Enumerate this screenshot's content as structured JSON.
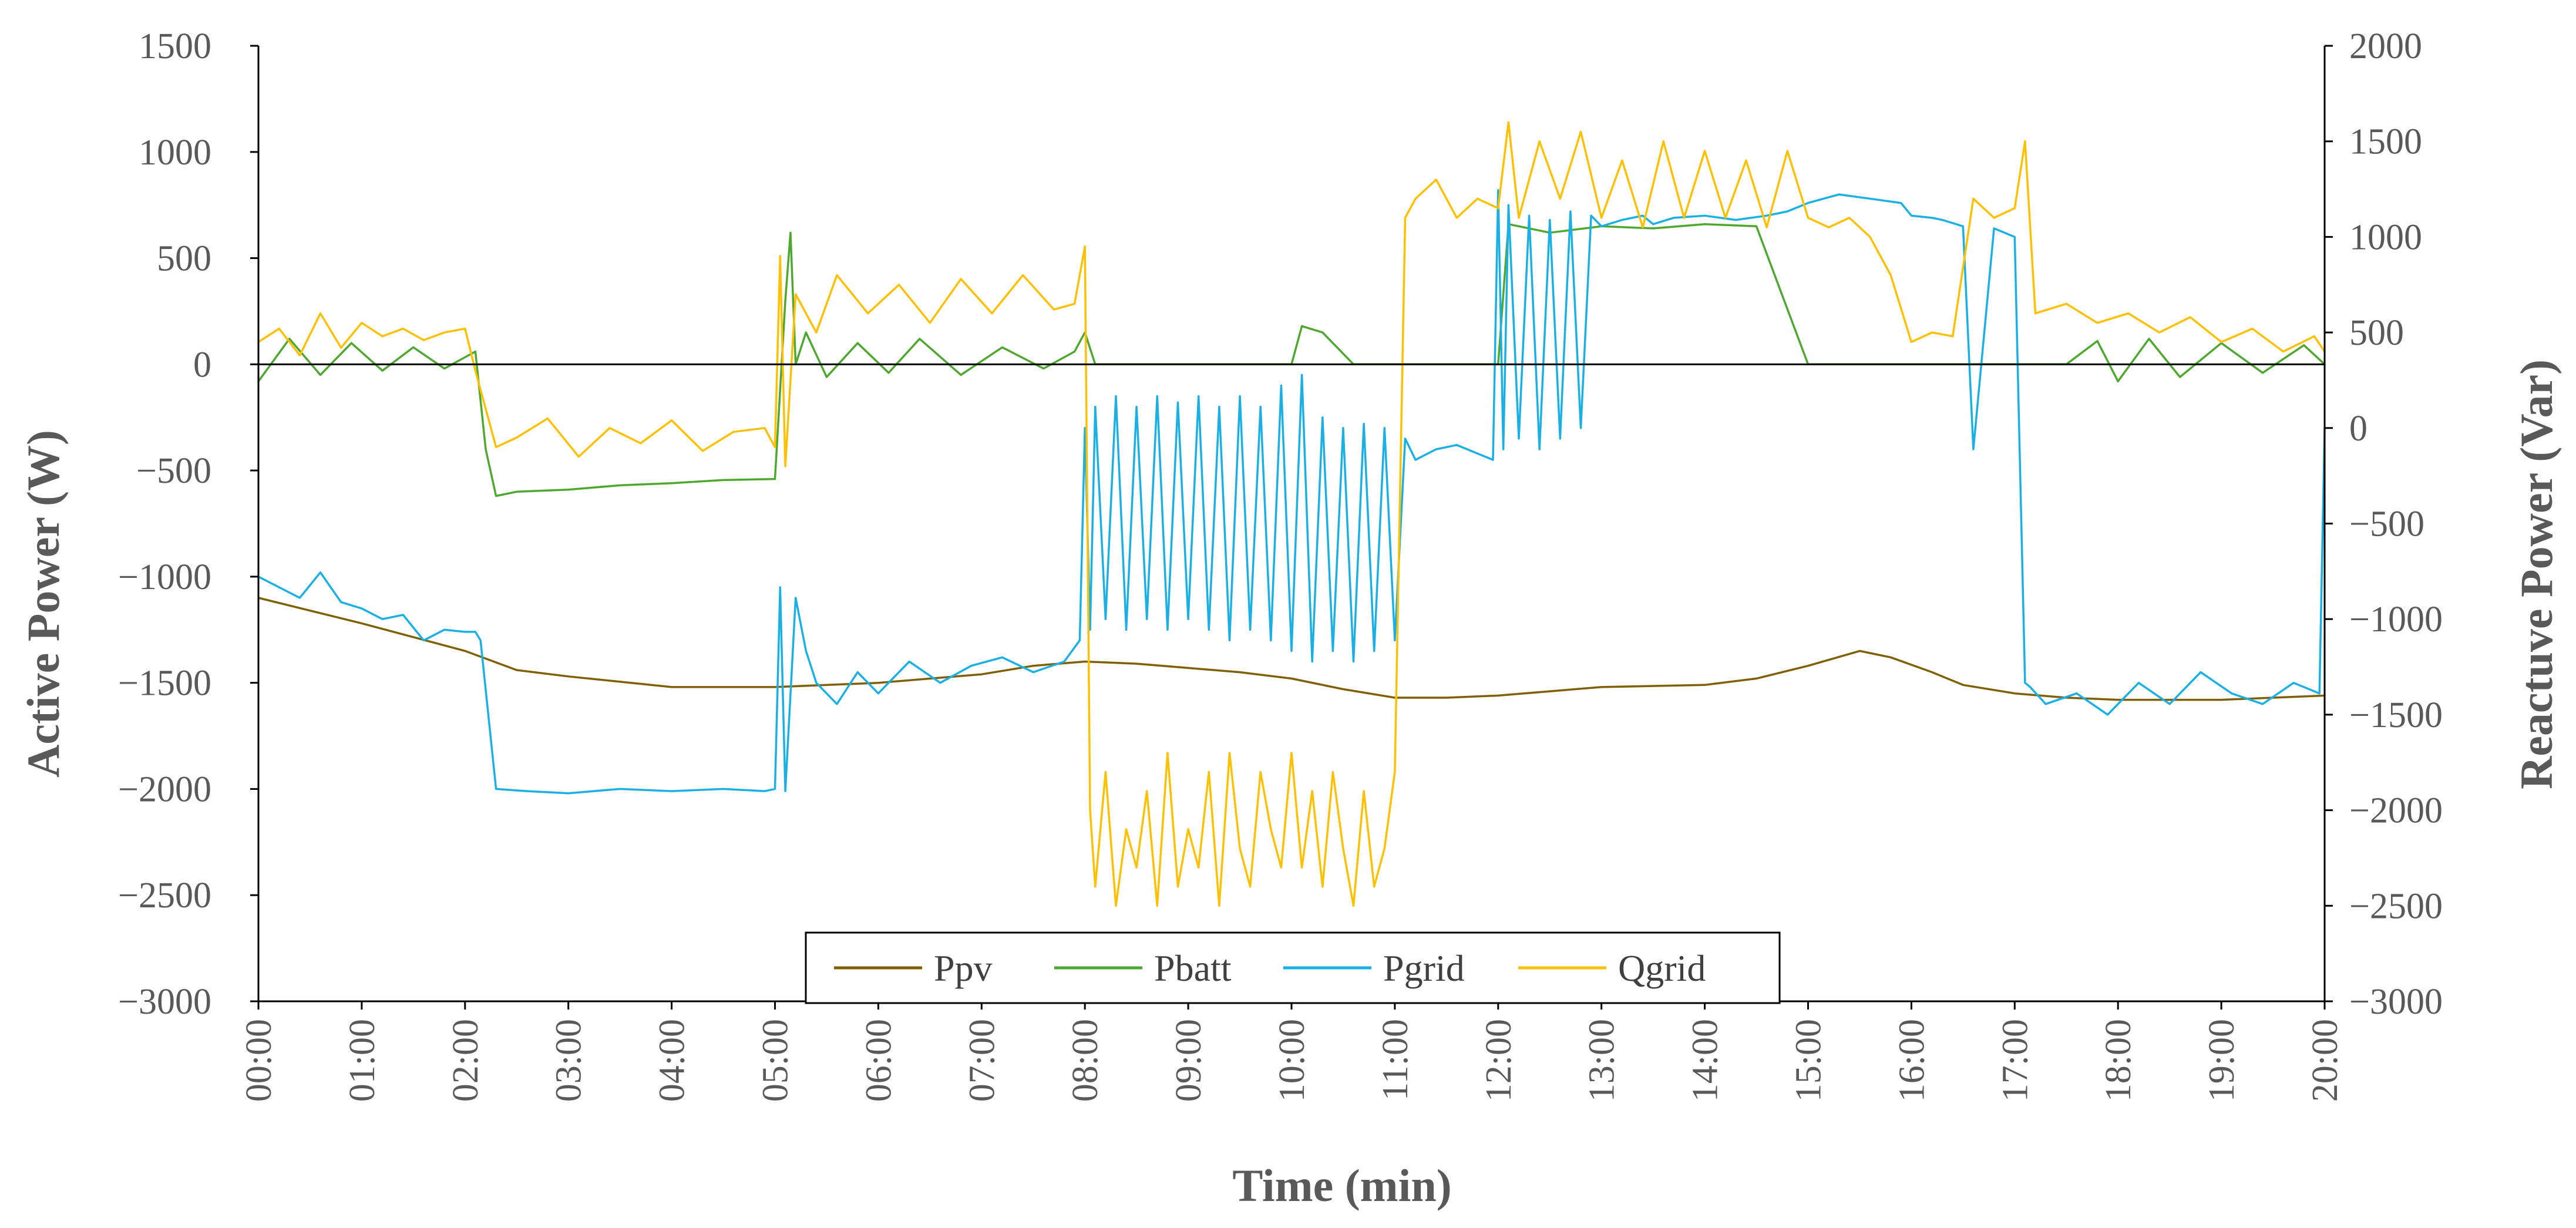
{
  "chart_data": {
    "type": "line",
    "title": "",
    "xlabel": "Time (min)",
    "ylabel_left": "Active Power (W)",
    "ylabel_right": "Reactuve Power (Var)",
    "x_range": [
      0,
      20
    ],
    "ylim_left": [
      -3000,
      1500
    ],
    "ylim_right": [
      -3000,
      2000
    ],
    "yticks_left": [
      -3000,
      -2500,
      -2000,
      -1500,
      -1000,
      -500,
      0,
      500,
      1000,
      1500
    ],
    "yticks_right": [
      -3000,
      -2500,
      -2000,
      -1500,
      -1000,
      -500,
      0,
      500,
      1000,
      1500,
      2000
    ],
    "ytick_labels_left": [
      "−3000",
      "−2500",
      "−2000",
      "−1500",
      "−1000",
      "−500",
      "0",
      "500",
      "1000",
      "1500"
    ],
    "ytick_labels_right": [
      "−3000",
      "−2500",
      "−2000",
      "−1500",
      "−1000",
      "−500",
      "0",
      "500",
      "1000",
      "1500",
      "2000"
    ],
    "xtick_labels": [
      "00:00",
      "01:00",
      "02:00",
      "03:00",
      "04:00",
      "05:00",
      "06:00",
      "07:00",
      "08:00",
      "09:00",
      "10:00",
      "11:00",
      "12:00",
      "13:00",
      "14:00",
      "15:00",
      "16:00",
      "17:00",
      "18:00",
      "19:00",
      "20:00"
    ],
    "legend_position": "bottom-center",
    "series": [
      {
        "name": "Ppv",
        "color": "#7f5f00",
        "axis": "left",
        "x": [
          0,
          1,
          2,
          2.5,
          3,
          4,
          5,
          6,
          7,
          7.5,
          8,
          8.5,
          9,
          9.5,
          10,
          10.5,
          11,
          11.5,
          12,
          12.5,
          13,
          14,
          14.5,
          15,
          15.5,
          15.8,
          16.2,
          16.5,
          17,
          17.5,
          18,
          18.5,
          19,
          19.5,
          20
        ],
        "y": [
          -1100,
          -1220,
          -1350,
          -1440,
          -1470,
          -1520,
          -1520,
          -1500,
          -1460,
          -1420,
          -1400,
          -1410,
          -1430,
          -1450,
          -1480,
          -1530,
          -1570,
          -1570,
          -1560,
          -1540,
          -1520,
          -1510,
          -1480,
          -1420,
          -1350,
          -1380,
          -1450,
          -1510,
          -1550,
          -1570,
          -1580,
          -1580,
          -1580,
          -1570,
          -1560
        ]
      },
      {
        "name": "Pbatt",
        "color": "#4ea72e",
        "axis": "left",
        "x": [
          0,
          0.3,
          0.6,
          0.9,
          1.2,
          1.5,
          1.8,
          2.1,
          2.2,
          2.3,
          2.5,
          3,
          3.5,
          4,
          4.5,
          5,
          5.1,
          5.15,
          5.2,
          5.3,
          5.5,
          5.8,
          6.1,
          6.4,
          6.8,
          7.2,
          7.6,
          7.9,
          8.0,
          8.1,
          8.5,
          9,
          9.5,
          10,
          10.1,
          10.3,
          10.6,
          10.9,
          11,
          11.5,
          11.8,
          12,
          12.1,
          12.5,
          13,
          13.5,
          14,
          14.5,
          15,
          15.5,
          16,
          16.5,
          17,
          17.1,
          17.5,
          17.8,
          18,
          18.3,
          18.6,
          19,
          19.4,
          19.8,
          20
        ],
        "y": [
          -80,
          120,
          -50,
          100,
          -30,
          80,
          -20,
          60,
          -400,
          -620,
          -600,
          -590,
          -570,
          -560,
          -545,
          -540,
          300,
          620,
          0,
          150,
          -60,
          100,
          -40,
          120,
          -50,
          80,
          -20,
          60,
          150,
          0,
          0,
          0,
          0,
          0,
          180,
          150,
          0,
          0,
          0,
          0,
          0,
          0,
          660,
          620,
          650,
          640,
          660,
          650,
          0,
          0,
          0,
          0,
          0,
          0,
          0,
          110,
          -80,
          120,
          -60,
          100,
          -40,
          90,
          0
        ]
      },
      {
        "name": "Pgrid",
        "color": "#1ab0e5",
        "axis": "left",
        "x": [
          0,
          0.2,
          0.4,
          0.6,
          0.8,
          1.0,
          1.2,
          1.4,
          1.6,
          1.8,
          2.0,
          2.1,
          2.15,
          2.3,
          2.6,
          3,
          3.5,
          4,
          4.5,
          4.9,
          5.0,
          5.05,
          5.1,
          5.2,
          5.3,
          5.4,
          5.6,
          5.8,
          6,
          6.3,
          6.6,
          6.9,
          7.2,
          7.5,
          7.8,
          7.95,
          8.0,
          8.05,
          8.1,
          8.2,
          8.3,
          8.4,
          8.5,
          8.6,
          8.7,
          8.8,
          8.9,
          9.0,
          9.1,
          9.2,
          9.3,
          9.4,
          9.5,
          9.6,
          9.7,
          9.8,
          9.9,
          10.0,
          10.1,
          10.2,
          10.3,
          10.4,
          10.5,
          10.6,
          10.7,
          10.8,
          10.9,
          11.0,
          11.1,
          11.2,
          11.4,
          11.6,
          11.8,
          11.95,
          12.0,
          12.05,
          12.1,
          12.2,
          12.3,
          12.4,
          12.5,
          12.6,
          12.7,
          12.8,
          12.9,
          13.0,
          13.2,
          13.4,
          13.5,
          13.7,
          14,
          14.3,
          14.6,
          14.8,
          15,
          15.3,
          15.6,
          15.9,
          16,
          16.2,
          16.3,
          16.5,
          16.6,
          16.8,
          17,
          17.1,
          17.15,
          17.3,
          17.6,
          17.9,
          18.2,
          18.5,
          18.8,
          19.1,
          19.4,
          19.7,
          19.95,
          20
        ],
        "y": [
          -1000,
          -1050,
          -1100,
          -980,
          -1120,
          -1150,
          -1200,
          -1180,
          -1300,
          -1250,
          -1260,
          -1260,
          -1300,
          -2000,
          -2010,
          -2020,
          -2000,
          -2010,
          -2000,
          -2010,
          -2000,
          -1050,
          -2010,
          -1100,
          -1350,
          -1500,
          -1600,
          -1450,
          -1550,
          -1400,
          -1500,
          -1420,
          -1380,
          -1450,
          -1400,
          -1300,
          -300,
          -1250,
          -200,
          -1200,
          -150,
          -1250,
          -200,
          -1200,
          -150,
          -1250,
          -180,
          -1200,
          -150,
          -1250,
          -200,
          -1300,
          -150,
          -1250,
          -200,
          -1300,
          -100,
          -1350,
          -50,
          -1400,
          -250,
          -1350,
          -300,
          -1400,
          -280,
          -1350,
          -300,
          -1300,
          -350,
          -450,
          -400,
          -380,
          -420,
          -450,
          820,
          -400,
          750,
          -350,
          700,
          -400,
          680,
          -350,
          720,
          -300,
          700,
          650,
          680,
          700,
          660,
          690,
          700,
          680,
          700,
          720,
          760,
          800,
          780,
          760,
          700,
          690,
          680,
          650,
          -400,
          640,
          600,
          -1500,
          -1520,
          -1600,
          -1550,
          -1650,
          -1500,
          -1600,
          -1450,
          -1550,
          -1600,
          -1500,
          -1550,
          -300
        ]
      },
      {
        "name": "Qgrid",
        "color": "#ffc000",
        "axis": "right",
        "x": [
          0,
          0.2,
          0.4,
          0.6,
          0.8,
          1.0,
          1.2,
          1.4,
          1.6,
          1.8,
          2.0,
          2.1,
          2.2,
          2.3,
          2.5,
          2.8,
          3.1,
          3.4,
          3.7,
          4.0,
          4.3,
          4.6,
          4.9,
          5.0,
          5.05,
          5.1,
          5.2,
          5.4,
          5.6,
          5.9,
          6.2,
          6.5,
          6.8,
          7.1,
          7.4,
          7.7,
          7.9,
          8.0,
          8.05,
          8.1,
          8.2,
          8.3,
          8.4,
          8.5,
          8.6,
          8.7,
          8.8,
          8.9,
          9.0,
          9.1,
          9.2,
          9.3,
          9.4,
          9.5,
          9.6,
          9.7,
          9.8,
          9.9,
          10.0,
          10.1,
          10.2,
          10.3,
          10.4,
          10.5,
          10.6,
          10.7,
          10.8,
          10.9,
          11.0,
          11.1,
          11.2,
          11.4,
          11.6,
          11.8,
          12.0,
          12.1,
          12.2,
          12.4,
          12.6,
          12.8,
          13.0,
          13.2,
          13.4,
          13.6,
          13.8,
          14.0,
          14.2,
          14.4,
          14.6,
          14.8,
          15.0,
          15.2,
          15.4,
          15.6,
          15.8,
          16.0,
          16.2,
          16.4,
          16.6,
          16.8,
          17.0,
          17.1,
          17.2,
          17.5,
          17.8,
          18.1,
          18.4,
          18.7,
          19.0,
          19.3,
          19.6,
          19.9,
          20
        ],
        "y": [
          450,
          520,
          380,
          600,
          420,
          550,
          480,
          520,
          460,
          500,
          520,
          300,
          100,
          -100,
          -50,
          50,
          -150,
          0,
          -80,
          40,
          -120,
          -20,
          0,
          -100,
          900,
          -200,
          700,
          500,
          800,
          600,
          750,
          550,
          780,
          600,
          800,
          620,
          650,
          950,
          -2000,
          -2400,
          -1800,
          -2500,
          -2100,
          -2300,
          -1900,
          -2500,
          -1700,
          -2400,
          -2100,
          -2300,
          -1800,
          -2500,
          -1700,
          -2200,
          -2400,
          -1800,
          -2100,
          -2300,
          -1700,
          -2300,
          -1900,
          -2400,
          -1800,
          -2200,
          -2500,
          -1900,
          -2400,
          -2200,
          -1800,
          1100,
          1200,
          1300,
          1100,
          1200,
          1150,
          1600,
          1100,
          1500,
          1200,
          1550,
          1100,
          1400,
          1050,
          1500,
          1100,
          1450,
          1100,
          1400,
          1050,
          1450,
          1100,
          1050,
          1100,
          1000,
          800,
          450,
          500,
          480,
          1200,
          1100,
          1150,
          1500,
          600,
          650,
          550,
          600,
          500,
          580,
          450,
          520,
          400,
          480,
          400
        ]
      }
    ]
  }
}
